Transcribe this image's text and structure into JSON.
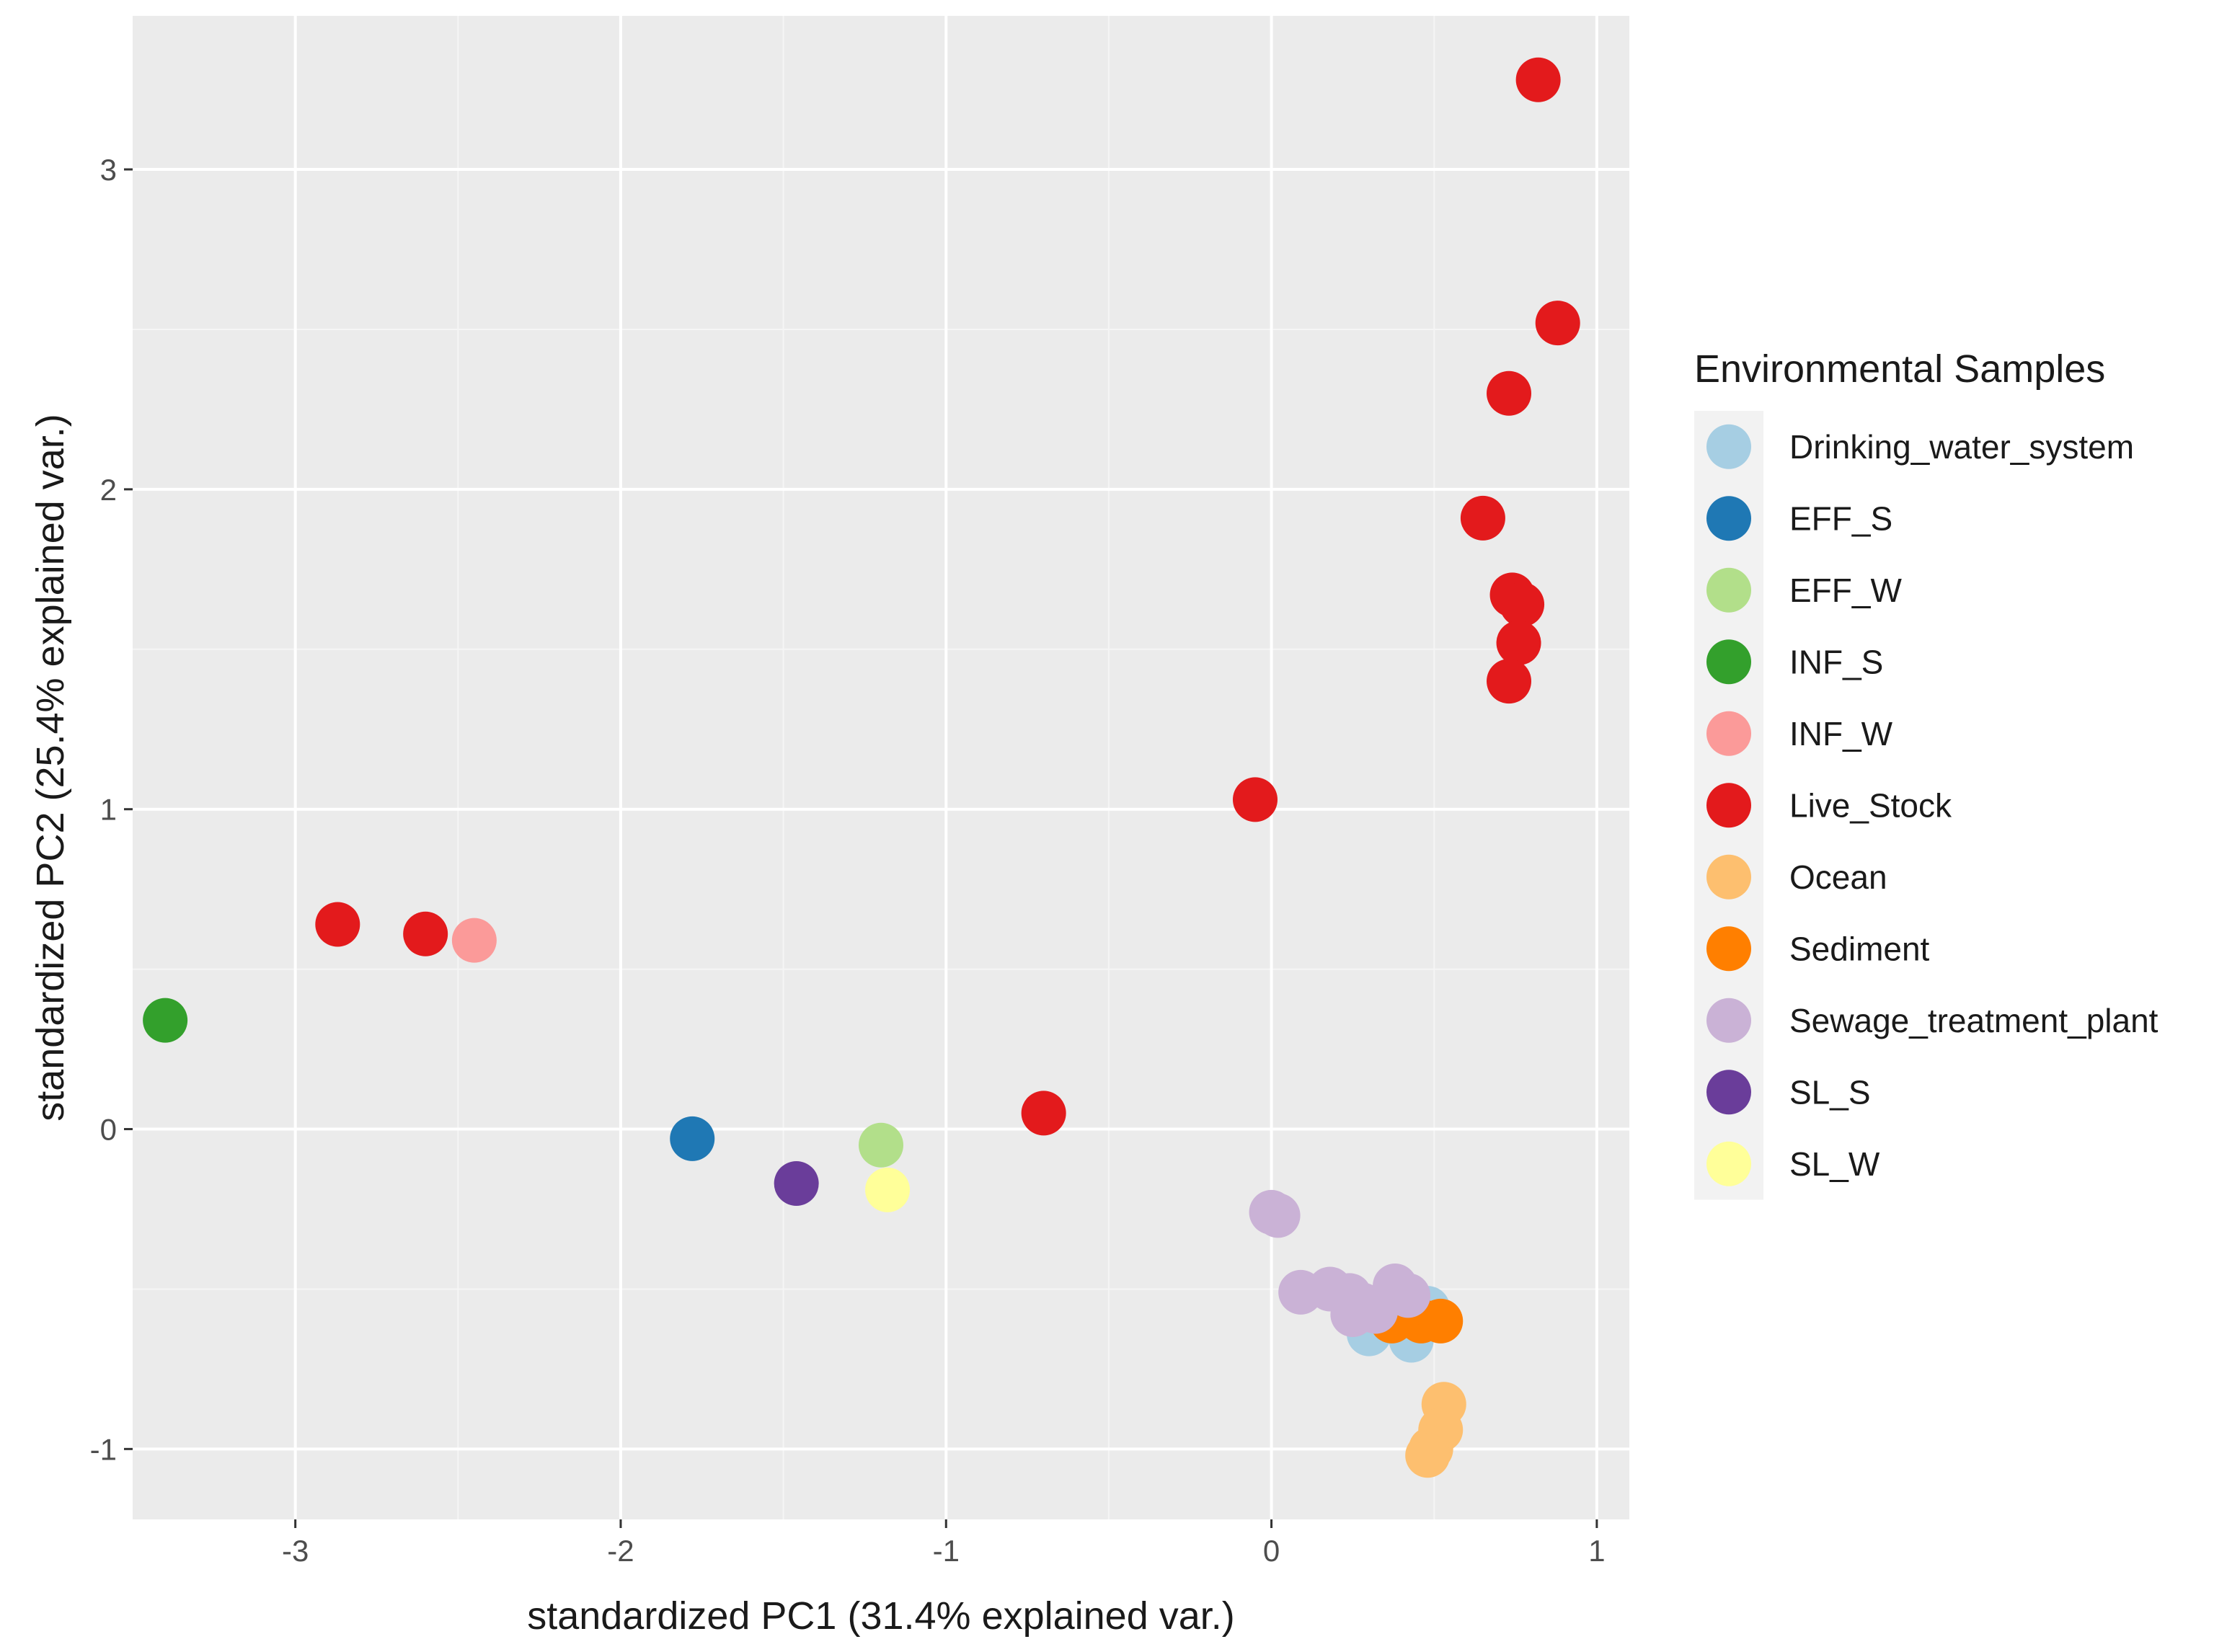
{
  "chart_data": {
    "type": "scatter",
    "xlabel": "standardized PC1 (31.4% explained var.)",
    "ylabel": "standardized PC2 (25.4% explained var.)",
    "xlim": [
      -3.5,
      1.1
    ],
    "ylim": [
      -1.22,
      3.48
    ],
    "x_ticks": [
      -3,
      -2,
      -1,
      0,
      1
    ],
    "y_ticks": [
      -1,
      0,
      1,
      2,
      3
    ],
    "x_tick_labels": [
      "-3",
      "-2",
      "-1",
      "0",
      "1"
    ],
    "y_tick_labels": [
      "-1",
      "0",
      "1",
      "2",
      "3"
    ],
    "grid": true,
    "legend": {
      "title": "Environmental Samples",
      "placement": "right"
    },
    "series": [
      {
        "name": "Drinking_water_system",
        "color": "#a6cee3",
        "points": [
          [
            0.3,
            -0.64
          ],
          [
            0.43,
            -0.66
          ],
          [
            0.48,
            -0.56
          ],
          [
            0.38,
            -0.6
          ]
        ]
      },
      {
        "name": "EFF_S",
        "color": "#1f78b4",
        "points": [
          [
            -1.78,
            -0.03
          ]
        ]
      },
      {
        "name": "EFF_W",
        "color": "#b2df8a",
        "points": [
          [
            -1.2,
            -0.05
          ]
        ]
      },
      {
        "name": "INF_S",
        "color": "#33a02c",
        "points": [
          [
            -3.4,
            0.34
          ]
        ]
      },
      {
        "name": "INF_W",
        "color": "#fb9a99",
        "points": [
          [
            -2.45,
            0.59
          ]
        ]
      },
      {
        "name": "Live_Stock",
        "color": "#e31a1c",
        "points": [
          [
            0.82,
            3.28
          ],
          [
            0.88,
            2.52
          ],
          [
            0.73,
            2.3
          ],
          [
            0.65,
            1.91
          ],
          [
            0.74,
            1.67
          ],
          [
            0.77,
            1.64
          ],
          [
            0.76,
            1.52
          ],
          [
            0.73,
            1.4
          ],
          [
            -0.05,
            1.03
          ],
          [
            -2.87,
            0.64
          ],
          [
            -2.6,
            0.61
          ],
          [
            -0.7,
            0.05
          ]
        ]
      },
      {
        "name": "Ocean",
        "color": "#fdbf6f",
        "points": [
          [
            0.53,
            -0.86
          ],
          [
            0.52,
            -0.94
          ],
          [
            0.49,
            -1.0
          ],
          [
            0.48,
            -1.02
          ]
        ]
      },
      {
        "name": "Sediment",
        "color": "#ff7f00",
        "points": [
          [
            0.37,
            -0.6
          ],
          [
            0.46,
            -0.6
          ],
          [
            0.52,
            -0.6
          ]
        ]
      },
      {
        "name": "Sewage_treatment_plant",
        "color": "#cab2d6",
        "points": [
          [
            0.0,
            -0.26
          ],
          [
            0.02,
            -0.27
          ],
          [
            0.09,
            -0.51
          ],
          [
            0.18,
            -0.5
          ],
          [
            0.24,
            -0.52
          ],
          [
            0.28,
            -0.55
          ],
          [
            0.25,
            -0.58
          ],
          [
            0.32,
            -0.57
          ],
          [
            0.38,
            -0.49
          ],
          [
            0.42,
            -0.52
          ]
        ]
      },
      {
        "name": "SL_S",
        "color": "#6a3d9a",
        "points": [
          [
            -1.46,
            -0.17
          ]
        ]
      },
      {
        "name": "SL_W",
        "color": "#ffff99",
        "points": [
          [
            -1.18,
            -0.19
          ]
        ]
      }
    ]
  }
}
